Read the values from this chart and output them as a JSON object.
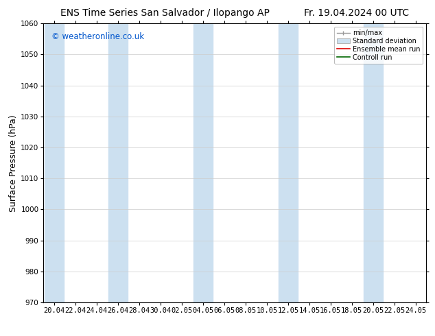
{
  "title_left": "ENS Time Series San Salvador / Ilopango AP",
  "title_right": "Fr. 19.04.2024 00 UTC",
  "ylabel": "Surface Pressure (hPa)",
  "ylim": [
    970,
    1060
  ],
  "yticks": [
    970,
    980,
    990,
    1000,
    1010,
    1020,
    1030,
    1040,
    1050,
    1060
  ],
  "xtick_labels": [
    "20.04",
    "22.04",
    "24.04",
    "26.04",
    "28.04",
    "30.04",
    "02.05",
    "04.05",
    "06.05",
    "08.05",
    "10.05",
    "12.05",
    "14.05",
    "16.05",
    "18.05",
    "20.05",
    "22.05",
    "24.05"
  ],
  "copyright_text": "© weatheronline.co.uk",
  "copyright_color": "#0055cc",
  "background_color": "#ffffff",
  "plot_bg_color": "#ffffff",
  "band_color": "#cce0f0",
  "title_fontsize": 10,
  "axis_label_fontsize": 9,
  "tick_fontsize": 7.5,
  "copyright_fontsize": 8.5
}
